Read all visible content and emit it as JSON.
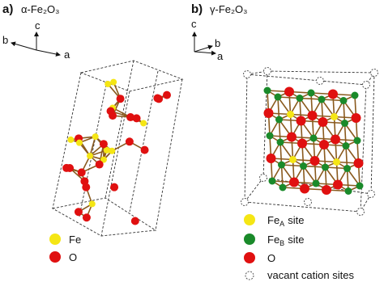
{
  "panels": [
    {
      "label": "a)",
      "title": "α-Fe₂O₃",
      "axes": [
        "c",
        "b",
        "a"
      ],
      "legend": [
        {
          "label": "Fe"
        },
        {
          "label": "O"
        }
      ]
    },
    {
      "label": "b)",
      "title": "γ-Fe₂O₃",
      "axes": [
        "c",
        "b",
        "a"
      ],
      "legend": [
        {
          "label": "Fe",
          "subscript": "A",
          "suffix": "site"
        },
        {
          "label": "Fe",
          "subscript": "B",
          "suffix": "site"
        },
        {
          "label": "O"
        },
        {
          "label": "vacant cation sites"
        }
      ]
    }
  ]
}
